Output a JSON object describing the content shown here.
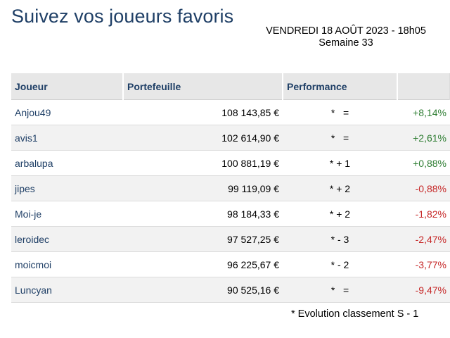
{
  "title": "Suivez vos joueurs favoris",
  "dateline": {
    "date": "VENDREDI 18 AOÛT 2023 - 18h05",
    "week": "Semaine 33"
  },
  "table": {
    "headers": [
      "Joueur",
      "Portefeuille",
      "Performance"
    ],
    "rows": [
      {
        "player": "Anjou49",
        "wallet": "108 143,85 €",
        "rank": "*   =",
        "perf": "+8,14%",
        "trend": "up"
      },
      {
        "player": "avis1",
        "wallet": "102 614,90 €",
        "rank": "*   =",
        "perf": "+2,61%",
        "trend": "up"
      },
      {
        "player": "arbalupa",
        "wallet": "100 881,19 €",
        "rank": "* + 1",
        "perf": "+0,88%",
        "trend": "up"
      },
      {
        "player": "jipes",
        "wallet": "99 119,09 €",
        "rank": "* + 2",
        "perf": "-0,88%",
        "trend": "down"
      },
      {
        "player": "Moi-je",
        "wallet": "98 184,33 €",
        "rank": "* + 2",
        "perf": "-1,82%",
        "trend": "down"
      },
      {
        "player": "leroidec",
        "wallet": "97 527,25 €",
        "rank": "* - 3",
        "perf": "-2,47%",
        "trend": "down"
      },
      {
        "player": "moicmoi",
        "wallet": "96 225,67 €",
        "rank": "* - 2",
        "perf": "-3,77%",
        "trend": "down"
      },
      {
        "player": "Luncyan",
        "wallet": "90 525,16 €",
        "rank": "*   =",
        "perf": "-9,47%",
        "trend": "down"
      }
    ]
  },
  "footnote": "* Evolution classement S - 1",
  "colors": {
    "title": "#1f3f66",
    "positive": "#2e7d32",
    "negative": "#c62828",
    "header_bg": "#e7e7e7",
    "alt_row_bg": "#f2f2f2"
  }
}
